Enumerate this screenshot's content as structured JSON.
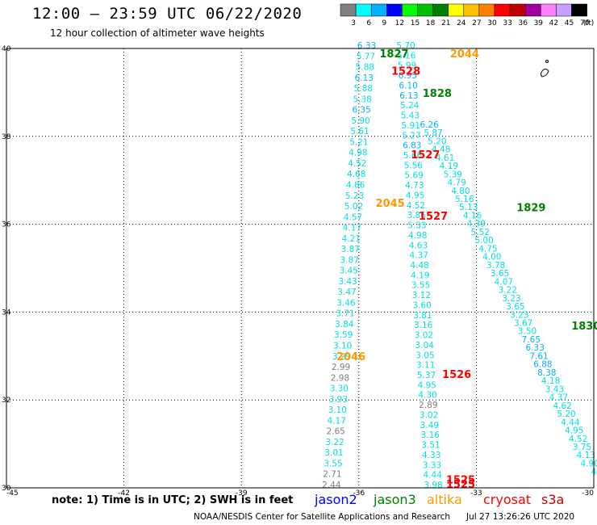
{
  "header": {
    "title": "12:00 – 23:59 UTC 06/22/2020",
    "subtitle": "12 hour collection of altimeter wave heights"
  },
  "legend": {
    "labels": [
      "3",
      "6",
      "9",
      "12",
      "15",
      "18",
      "21",
      "24",
      "27",
      "30",
      "33",
      "36",
      "39",
      "42",
      "45",
      "70",
      "(ft)"
    ],
    "colors": [
      "#808080",
      "#00ffff",
      "#00b0ff",
      "#0000ff",
      "#00ff00",
      "#00c000",
      "#008000",
      "#ffff00",
      "#ffc000",
      "#ff8000",
      "#ff0000",
      "#c00000",
      "#a000a0",
      "#ff80ff",
      "#c8a0ff",
      "#000000"
    ]
  },
  "footer": {
    "note": "note:  1) Time is in UTC;  2) SWH is in feet",
    "credit": "NOAA/NESDIS Center for Satellite Applications and Research",
    "timestamp": "Jul 27 13:26:26 UTC 2020",
    "satellites": [
      {
        "name": "jason2",
        "color": "#0000ff"
      },
      {
        "name": "jason3",
        "color": "#008000"
      },
      {
        "name": "altika",
        "color": "#ff9900"
      },
      {
        "name": "cryosat",
        "color": "#ff0000"
      },
      {
        "name": "s3a",
        "color": "#c00000"
      }
    ]
  },
  "chart_data": {
    "type": "scatter",
    "xlim": [
      -45,
      -30
    ],
    "ylim": [
      30,
      40
    ],
    "x_ticks": [
      -45,
      -42,
      -39,
      -36,
      -33,
      -30
    ],
    "y_ticks": [
      30,
      32,
      34,
      36,
      38,
      40
    ],
    "grid": true,
    "tracks": [
      {
        "name": "west-track",
        "start": [
          -35.8,
          40.0
        ],
        "end": [
          -36.7,
          30.0
        ],
        "values": [
          "6.33",
          "5.77",
          "5.88",
          "6.13",
          "5.88",
          "5.38",
          "6.35",
          "5.90",
          "5.61",
          "5.21",
          "4.98",
          "4.52",
          "4.68",
          "4.86",
          "5.23",
          "5.02",
          "4.57",
          "4.17",
          "4.21",
          "3.87",
          "3.87",
          "3.45",
          "3.43",
          "3.47",
          "3.46",
          "3.71",
          "3.84",
          "3.59",
          "3.10",
          "3.29",
          "2.99",
          "2.98",
          "3.30",
          "3.93",
          "3.10",
          "4.17",
          "2.65",
          "3.22",
          "3.01",
          "3.55",
          "2.71",
          "2.44"
        ]
      },
      {
        "name": "middle-track",
        "start": [
          -34.8,
          40.0
        ],
        "end": [
          -34.1,
          30.0
        ],
        "values": [
          "5.70",
          "5.16",
          "5.99",
          "6.95",
          "6.10",
          "6.13",
          "5.24",
          "5.43",
          "5.91",
          "5.27",
          "6.83",
          "5.66",
          "5.56",
          "5.69",
          "4.73",
          "4.95",
          "4.52",
          "3.86",
          "5.33",
          "4.98",
          "4.63",
          "4.37",
          "4.48",
          "4.19",
          "3.55",
          "3.12",
          "3.60",
          "3.81",
          "3.16",
          "3.02",
          "3.04",
          "3.05",
          "3.11",
          "5.37",
          "4.95",
          "4.30",
          "2.89",
          "3.02",
          "3.49",
          "3.16",
          "3.51",
          "4.33",
          "3.33",
          "4.44",
          "3.98"
        ]
      },
      {
        "name": "east-track",
        "start": [
          -34.2,
          38.2
        ],
        "end": [
          -30.0,
          30.3
        ],
        "values": [
          "6.26",
          "5.87",
          "5.20",
          "4.48",
          "4.61",
          "4.19",
          "5.39",
          "4.79",
          "4.80",
          "5.16",
          "5.13",
          "4.16",
          "4.39",
          "5.52",
          "5.00",
          "4.75",
          "4.00",
          "3.78",
          "3.65",
          "4.07",
          "3.22",
          "3.23",
          "3.65",
          "3.23",
          "3.67",
          "3.50",
          "7.65",
          "6.33",
          "7.61",
          "6.88",
          "8.38",
          "4.18",
          "3.43",
          "4.37",
          "4.62",
          "5.20",
          "4.44",
          "4.95",
          "4.52",
          "3.75",
          "4.13",
          "4.90",
          "4"
        ]
      }
    ],
    "time_labels": [
      {
        "text": "1827",
        "x": -35.1,
        "y": 39.8,
        "color": "#008000"
      },
      {
        "text": "2044",
        "x": -33.3,
        "y": 39.8,
        "color": "#ff9900"
      },
      {
        "text": "1528",
        "x": -34.8,
        "y": 39.4,
        "color": "#ff0000"
      },
      {
        "text": "1828",
        "x": -34.0,
        "y": 38.9,
        "color": "#008000"
      },
      {
        "text": "1527",
        "x": -34.3,
        "y": 37.5,
        "color": "#ff0000"
      },
      {
        "text": "2045",
        "x": -35.2,
        "y": 36.4,
        "color": "#ff9900"
      },
      {
        "text": "1527",
        "x": -34.1,
        "y": 36.1,
        "color": "#ff0000"
      },
      {
        "text": "1829",
        "x": -31.6,
        "y": 36.3,
        "color": "#008000"
      },
      {
        "text": "1830",
        "x": -30.2,
        "y": 33.6,
        "color": "#008000"
      },
      {
        "text": "2046",
        "x": -36.2,
        "y": 32.9,
        "color": "#ff9900"
      },
      {
        "text": "1526",
        "x": -33.5,
        "y": 32.5,
        "color": "#ff0000"
      },
      {
        "text": "1525",
        "x": -33.4,
        "y": 30.1,
        "color": "#ff0000"
      },
      {
        "text": "1525",
        "x": -33.4,
        "y": 30.0,
        "color": "#ff0000"
      }
    ]
  }
}
